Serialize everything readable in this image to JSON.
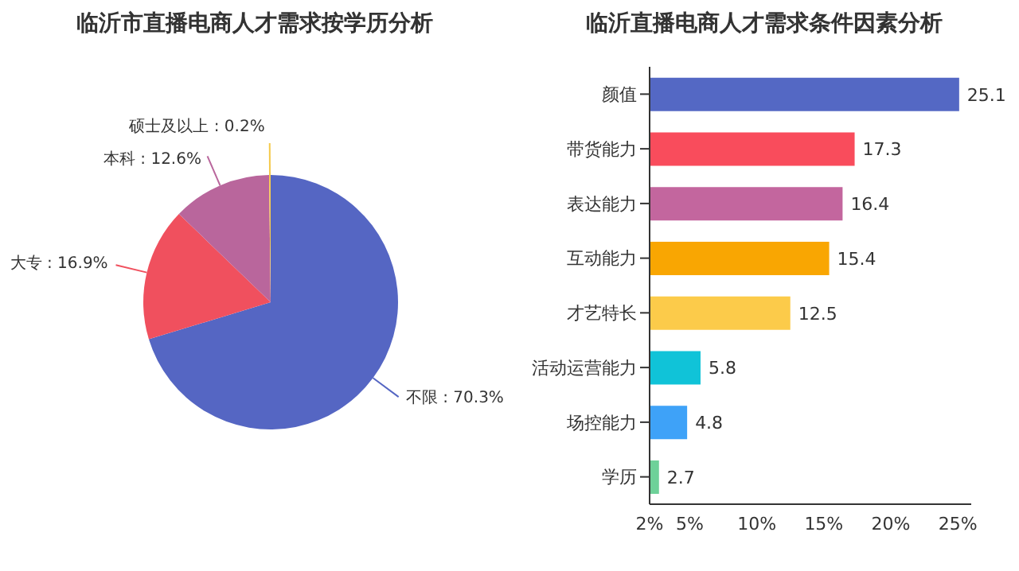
{
  "chart_data": [
    {
      "type": "pie",
      "title": "临沂市直播电商人才需求按学历分析",
      "categories": [
        "不限",
        "大专",
        "本科",
        "硕士及以上"
      ],
      "values": [
        70.3,
        16.9,
        12.6,
        0.2
      ],
      "value_labels": [
        "70.3%",
        "16.9%",
        "12.6%",
        "0.2%"
      ],
      "colors": [
        "#5566c3",
        "#f0505e",
        "#b9669c",
        "#f5c94a"
      ]
    },
    {
      "type": "bar",
      "orientation": "horizontal",
      "title": "临沂直播电商人才需求条件因素分析",
      "categories": [
        "颜值",
        "带货能力",
        "表达能力",
        "互动能力",
        "才艺特长",
        "活动运营能力",
        "场控能力",
        "学历"
      ],
      "values": [
        25.1,
        17.3,
        16.4,
        15.4,
        12.5,
        5.8,
        4.8,
        2.7
      ],
      "colors": [
        "#5468c4",
        "#f94c5c",
        "#c3669e",
        "#f9a602",
        "#fccb4a",
        "#10c3d8",
        "#3ea2f8",
        "#6ed199"
      ],
      "xlim": [
        2,
        26
      ],
      "xticks": [
        {
          "value": 2,
          "label": "2%"
        },
        {
          "value": 5,
          "label": "5%"
        },
        {
          "value": 10,
          "label": "10%"
        },
        {
          "value": 15,
          "label": "15%"
        },
        {
          "value": 20,
          "label": "20%"
        },
        {
          "value": 25,
          "label": "25%"
        }
      ],
      "data_labels": true
    }
  ]
}
